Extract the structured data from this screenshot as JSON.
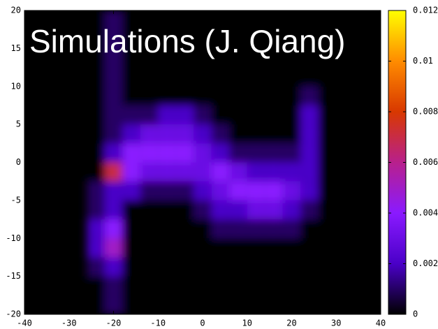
{
  "chart_data": {
    "type": "heatmap",
    "title": "Simulations (J. Qiang)",
    "x": [
      -24,
      -20,
      -16,
      -12,
      -8,
      -4,
      0,
      4,
      8,
      12,
      16,
      20,
      24,
      28
    ],
    "y": [
      18.75,
      16.25,
      13.75,
      11.25,
      8.75,
      6.25,
      3.75,
      1.25,
      -1.25,
      -3.75,
      -6.25,
      -8.75,
      -11.25,
      -13.75,
      -16.25,
      -18.75
    ],
    "z": [
      [
        0,
        0.001,
        0,
        0,
        0,
        0,
        0,
        0,
        0,
        0,
        0,
        0,
        0,
        0
      ],
      [
        0,
        0.001,
        0,
        0,
        0,
        0,
        0,
        0,
        0,
        0,
        0,
        0,
        0,
        0
      ],
      [
        0,
        0.001,
        0,
        0,
        0,
        0,
        0,
        0,
        0,
        0,
        0,
        0,
        0,
        0
      ],
      [
        0,
        0.001,
        0,
        0,
        0,
        0,
        0,
        0,
        0,
        0,
        0,
        0,
        0,
        0
      ],
      [
        0,
        0.001,
        0,
        0,
        0,
        0,
        0,
        0,
        0,
        0,
        0,
        0,
        0.001,
        0
      ],
      [
        0,
        0.001,
        0.001,
        0.001,
        0.002,
        0.002,
        0.001,
        0,
        0,
        0,
        0,
        0,
        0.002,
        0
      ],
      [
        0,
        0.001,
        0.002,
        0.003,
        0.003,
        0.003,
        0.002,
        0.001,
        0,
        0,
        0,
        0,
        0.002,
        0
      ],
      [
        0,
        0.002,
        0.004,
        0.004,
        0.004,
        0.004,
        0.003,
        0.002,
        0.001,
        0.001,
        0.001,
        0.001,
        0.002,
        0
      ],
      [
        0,
        0.007,
        0.004,
        0.003,
        0.003,
        0.003,
        0.003,
        0.004,
        0.003,
        0.002,
        0.002,
        0.002,
        0.002,
        0
      ],
      [
        0.001,
        0.002,
        0.002,
        0.001,
        0.001,
        0.001,
        0.002,
        0.003,
        0.004,
        0.004,
        0.004,
        0.003,
        0.002,
        0
      ],
      [
        0.001,
        0.002,
        0,
        0,
        0,
        0,
        0.001,
        0.002,
        0.002,
        0.003,
        0.003,
        0.002,
        0.001,
        0
      ],
      [
        0.002,
        0.004,
        0,
        0,
        0,
        0,
        0,
        0.001,
        0.001,
        0.001,
        0.001,
        0.001,
        0,
        0
      ],
      [
        0.002,
        0.005,
        0,
        0,
        0,
        0,
        0,
        0,
        0,
        0,
        0,
        0,
        0,
        0
      ],
      [
        0.001,
        0.002,
        0,
        0,
        0,
        0,
        0,
        0,
        0,
        0,
        0,
        0,
        0,
        0
      ],
      [
        0,
        0.001,
        0,
        0,
        0,
        0,
        0,
        0,
        0,
        0,
        0,
        0,
        0,
        0
      ],
      [
        0,
        0.001,
        0,
        0,
        0,
        0,
        0,
        0,
        0,
        0,
        0,
        0,
        0,
        0
      ]
    ],
    "xlim": [
      -40,
      40
    ],
    "xticks": [
      -40,
      -30,
      -20,
      -10,
      0,
      10,
      20,
      30,
      40
    ],
    "ylim": [
      -20,
      20
    ],
    "yticks": [
      -20,
      -15,
      -10,
      -5,
      0,
      5,
      10,
      15,
      20
    ],
    "zlim": [
      0,
      0.012
    ],
    "zticks": [
      0,
      0.002,
      0.004,
      0.006,
      0.008,
      0.01,
      0.012
    ],
    "colorscale": [
      "#000000",
      "#4a00c8",
      "#8a1aff",
      "#b8208c",
      "#d83800",
      "#ff8c00",
      "#ffff00"
    ]
  }
}
